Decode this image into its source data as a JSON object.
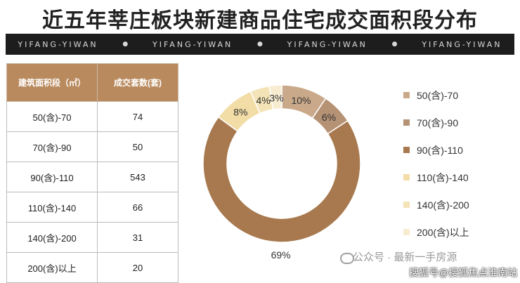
{
  "chart_data": {
    "type": "pie",
    "title": "近五年莘庄板块新建商品住宅成交面积段分布",
    "banner": [
      "YIFANG-YIWAN",
      "YIFANG-YIWAN",
      "YIFANG-YIWAN",
      "YIFANG-YIWAN"
    ],
    "banner_sep": "●",
    "table": {
      "headers": [
        "建筑面积段（㎡）",
        "成交套数(套)"
      ],
      "rows": [
        [
          "50(含)-70",
          "74"
        ],
        [
          "70(含)-90",
          "50"
        ],
        [
          "90(含)-110",
          "543"
        ],
        [
          "110(含)-140",
          "66"
        ],
        [
          "140(含)-200",
          "31"
        ],
        [
          "200(含)以上",
          "20"
        ]
      ]
    },
    "categories": [
      "50(含)-70",
      "70(含)-90",
      "90(含)-110",
      "110(含)-140",
      "140(含)-200",
      "200(含)以上"
    ],
    "values": [
      74,
      50,
      543,
      66,
      31,
      20
    ],
    "labels": [
      "10%",
      "6%",
      "69%",
      "8%",
      "4%",
      "3%"
    ],
    "colors": [
      "#c9a98a",
      "#b69275",
      "#a8794f",
      "#f2dda7",
      "#f4e3b6",
      "#f7ecd0"
    ],
    "legend_position": "right"
  },
  "watermark": {
    "line1": "公众号 · 最新一手房源",
    "line2": "搜狐号@搜狐焦点淮南站"
  }
}
